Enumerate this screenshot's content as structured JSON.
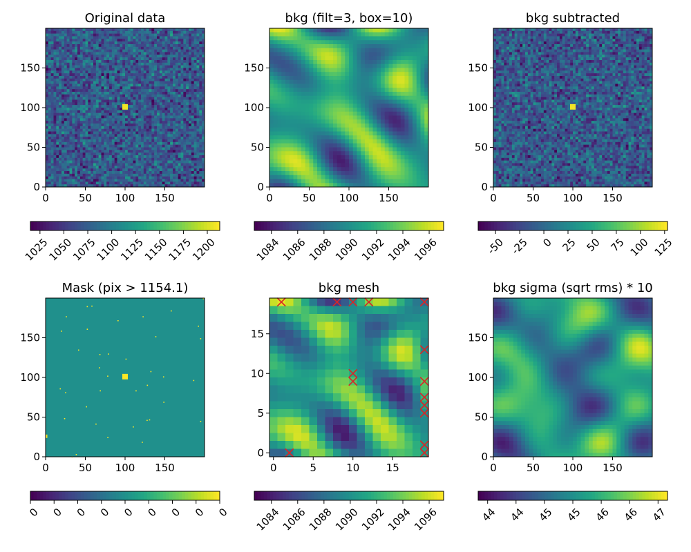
{
  "chart_data": [
    {
      "type": "heatmap",
      "title": "Original data",
      "colormap": "viridis",
      "pattern": "noise",
      "x_ticks": [
        "0",
        "50",
        "100",
        "150"
      ],
      "y_ticks": [
        "0",
        "50",
        "100",
        "150"
      ],
      "xlim": [
        0,
        200
      ],
      "ylim": [
        0,
        200
      ],
      "colorbar_ticks": [
        "1025",
        "1050",
        "1075",
        "1100",
        "1125",
        "1150",
        "1175",
        "1200"
      ],
      "colorbar_range": [
        1015,
        1213
      ]
    },
    {
      "type": "heatmap",
      "title": "bkg (filt=3, box=10)",
      "colormap": "viridis",
      "pattern": "smooth",
      "x_ticks": [
        "0",
        "50",
        "100",
        "150"
      ],
      "y_ticks": [
        "0",
        "50",
        "100",
        "150"
      ],
      "xlim": [
        0,
        200
      ],
      "ylim": [
        0,
        200
      ],
      "colorbar_ticks": [
        "1084",
        "1086",
        "1088",
        "1090",
        "1092",
        "1094",
        "1096"
      ],
      "colorbar_range": [
        1082.7,
        1097.1
      ]
    },
    {
      "type": "heatmap",
      "title": "bkg subtracted",
      "colormap": "viridis",
      "pattern": "noise",
      "x_ticks": [
        "0",
        "50",
        "100",
        "150"
      ],
      "y_ticks": [
        "0",
        "50",
        "100",
        "150"
      ],
      "xlim": [
        0,
        200
      ],
      "ylim": [
        0,
        200
      ],
      "colorbar_ticks": [
        "-50",
        "-25",
        "0",
        "25",
        "50",
        "75",
        "100",
        "125"
      ],
      "colorbar_range": [
        -68,
        128
      ]
    },
    {
      "type": "heatmap",
      "title": "Mask (pix > 1154.1)",
      "colormap": "viridis",
      "pattern": "mask",
      "x_ticks": [
        "0",
        "50",
        "100",
        "150"
      ],
      "y_ticks": [
        "0",
        "50",
        "100",
        "150"
      ],
      "xlim": [
        0,
        200
      ],
      "ylim": [
        0,
        200
      ],
      "colorbar_ticks": [
        "0",
        "0",
        "0",
        "0",
        "0",
        "0",
        "0",
        "0",
        "0"
      ],
      "colorbar_range": [
        0,
        1
      ]
    },
    {
      "type": "heatmap",
      "title": "bkg mesh",
      "colormap": "viridis",
      "pattern": "mesh",
      "x_ticks": [
        "0",
        "5",
        "10",
        "15"
      ],
      "y_ticks": [
        "0",
        "5",
        "10",
        "15"
      ],
      "xlim": [
        -0.5,
        19.5
      ],
      "ylim": [
        -0.5,
        19.5
      ],
      "colorbar_ticks": [
        "1084",
        "1086",
        "1088",
        "1090",
        "1092",
        "1094",
        "1096"
      ],
      "colorbar_range": [
        1082.7,
        1097.1
      ],
      "markers": [
        [
          1,
          19
        ],
        [
          8,
          19
        ],
        [
          10,
          19
        ],
        [
          12,
          19
        ],
        [
          19,
          19
        ],
        [
          19,
          13
        ],
        [
          10,
          10
        ],
        [
          10,
          9
        ],
        [
          19,
          9
        ],
        [
          19,
          7
        ],
        [
          19,
          6
        ],
        [
          19,
          5
        ],
        [
          19,
          1
        ],
        [
          19,
          0
        ],
        [
          2,
          0
        ]
      ]
    },
    {
      "type": "heatmap",
      "title": "bkg sigma (sqrt rms) * 10",
      "colormap": "viridis",
      "pattern": "smooth",
      "x_ticks": [
        "0",
        "50",
        "100",
        "150"
      ],
      "y_ticks": [
        "0",
        "50",
        "100",
        "150"
      ],
      "xlim": [
        0,
        200
      ],
      "ylim": [
        0,
        200
      ],
      "colorbar_ticks": [
        "44",
        "44",
        "45",
        "45",
        "46",
        "46",
        "47"
      ],
      "colorbar_range": [
        43.6,
        47.2
      ]
    }
  ]
}
